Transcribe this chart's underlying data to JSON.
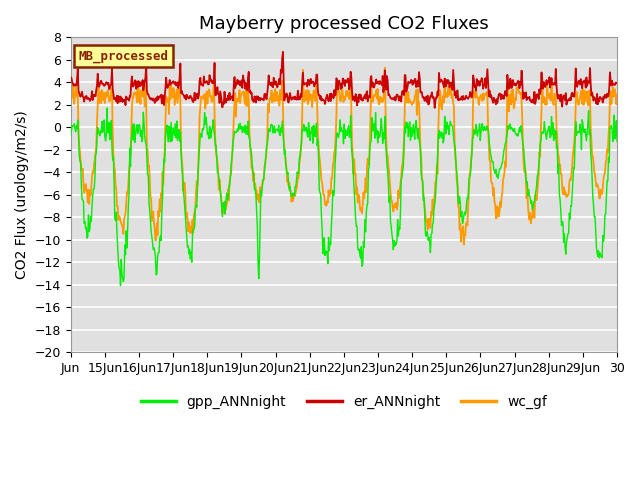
{
  "title": "Mayberry processed CO2 Fluxes",
  "ylabel": "CO2 Flux (urology/m2/s)",
  "ylim": [
    -20,
    8
  ],
  "yticks": [
    -20,
    -18,
    -16,
    -14,
    -12,
    -10,
    -8,
    -6,
    -4,
    -2,
    0,
    2,
    4,
    6,
    8
  ],
  "title_fontsize": 13,
  "axis_fontsize": 10,
  "tick_fontsize": 9,
  "legend_fontsize": 10,
  "line_colors": {
    "gpp": "#00ee00",
    "er": "#cc0000",
    "wc": "#ff9900"
  },
  "line_widths": {
    "gpp": 1.0,
    "er": 1.3,
    "wc": 1.3
  },
  "legend_labels": [
    "gpp_ANNnight",
    "er_ANNnight",
    "wc_gf"
  ],
  "mb_label": "MB_processed",
  "mb_bg_color": "#ffff99",
  "mb_border_color": "#882200",
  "plot_bg_color": "#e0e0e0",
  "fig_bg_color": "#ffffff",
  "grid_color": "#ffffff",
  "xticklabels": [
    "Jun",
    "15Jun",
    "16Jun",
    "17Jun",
    "18Jun",
    "19Jun",
    "20Jun",
    "21Jun",
    "22Jun",
    "23Jun",
    "24Jun",
    "25Jun",
    "26Jun",
    "27Jun",
    "28Jun",
    "29Jun",
    "30"
  ]
}
